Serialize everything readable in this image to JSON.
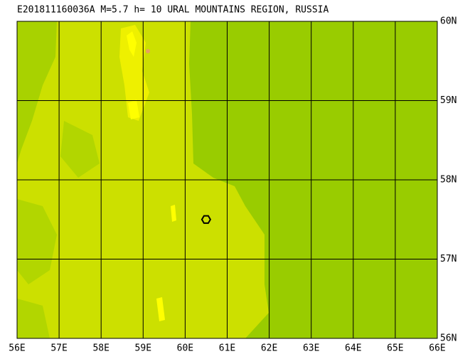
{
  "map": {
    "title": "E201811160036A M=5.7 h= 10 URAL MOUNTAINS REGION, RUSSIA",
    "xlim": [
      56,
      66
    ],
    "ylim": [
      56,
      60
    ],
    "xticks": [
      {
        "value": 56,
        "label": "56E"
      },
      {
        "value": 57,
        "label": "57E"
      },
      {
        "value": 58,
        "label": "58E"
      },
      {
        "value": 59,
        "label": "59E"
      },
      {
        "value": 60,
        "label": "60E"
      },
      {
        "value": 61,
        "label": "61E"
      },
      {
        "value": 62,
        "label": "62E"
      },
      {
        "value": 63,
        "label": "63E"
      },
      {
        "value": 64,
        "label": "64E"
      },
      {
        "value": 65,
        "label": "65E"
      },
      {
        "value": 66,
        "label": "66E"
      }
    ],
    "yticks": [
      {
        "value": 56,
        "label": "56N"
      },
      {
        "value": 57,
        "label": "57N"
      },
      {
        "value": 58,
        "label": "58N"
      },
      {
        "value": 59,
        "label": "59N"
      },
      {
        "value": 60,
        "label": "60N"
      }
    ],
    "event": {
      "lon": 60.5,
      "lat": 57.5
    }
  }
}
